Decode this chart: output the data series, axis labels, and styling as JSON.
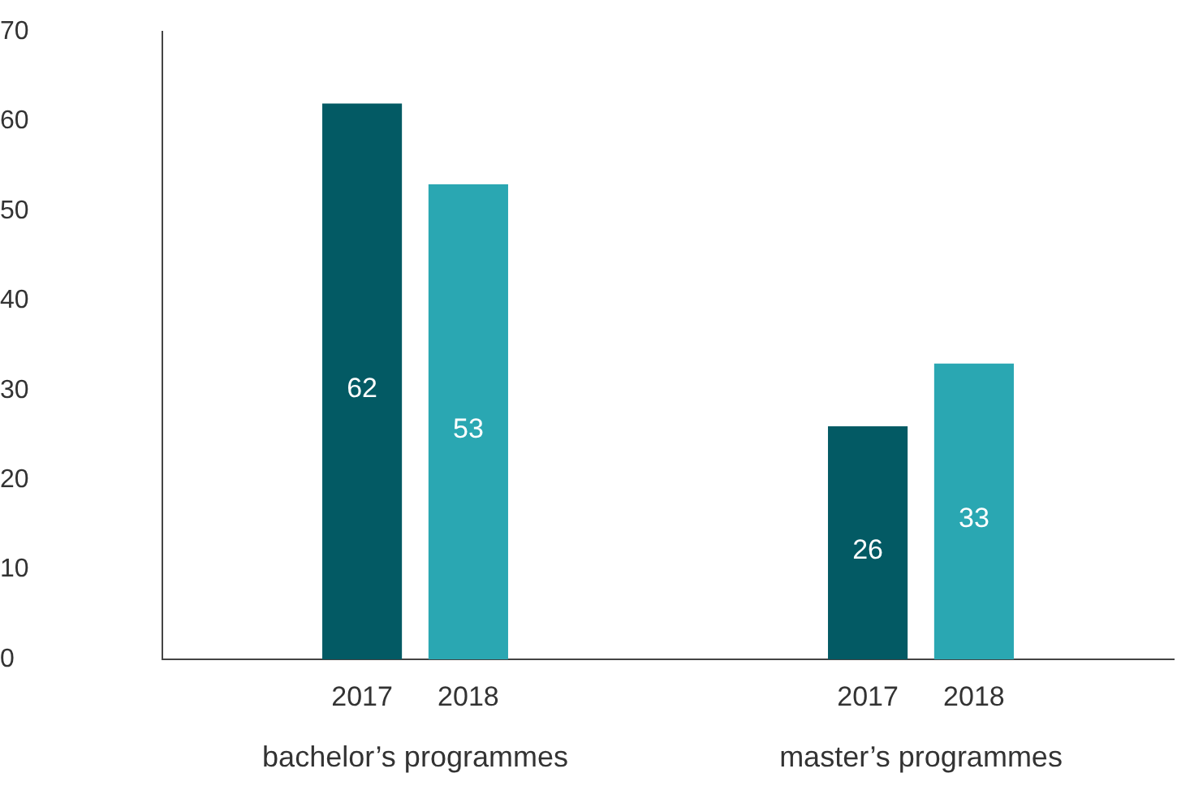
{
  "chart_data": {
    "type": "bar",
    "categories": [
      "bachelor’s programmes",
      "master’s programmes"
    ],
    "series": [
      {
        "name": "2017",
        "color": "#035a64",
        "values": [
          62,
          26
        ]
      },
      {
        "name": "2018",
        "color": "#2aa7b2",
        "values": [
          53,
          33
        ]
      }
    ],
    "ylim": [
      0,
      70
    ],
    "yticks": [
      0,
      10,
      20,
      30,
      40,
      50,
      60,
      70
    ],
    "grid": false,
    "legend": false,
    "data_labels": true
  }
}
